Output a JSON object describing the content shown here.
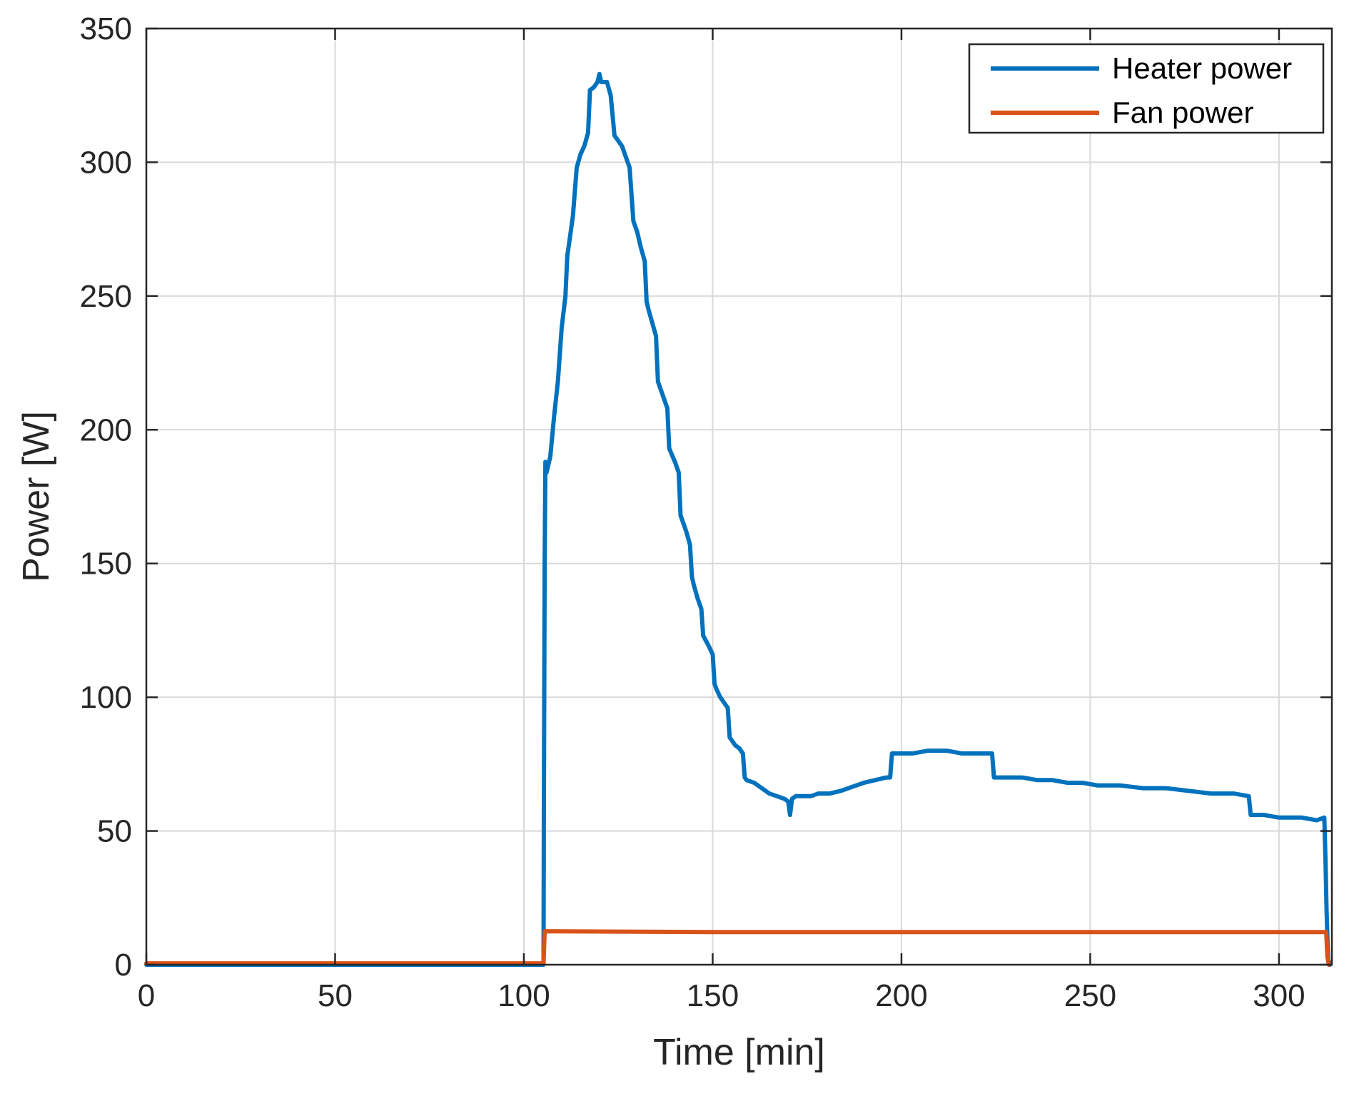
{
  "chart_data": {
    "type": "line",
    "xlabel": "Time [min]",
    "ylabel": "Power [W]",
    "xlim": [
      0,
      314
    ],
    "ylim": [
      0,
      350
    ],
    "xticks": [
      0,
      50,
      100,
      150,
      200,
      250,
      300
    ],
    "yticks": [
      0,
      50,
      100,
      150,
      200,
      250,
      300,
      350
    ],
    "grid": true,
    "legend_position": "top-right",
    "series": [
      {
        "name": "Heater power",
        "color": "#0072BD",
        "points": [
          [
            0,
            0
          ],
          [
            105.2,
            0
          ],
          [
            105.3,
            60
          ],
          [
            105.5,
            150
          ],
          [
            105.7,
            188
          ],
          [
            106,
            184
          ],
          [
            107,
            190
          ],
          [
            108,
            205
          ],
          [
            109,
            218
          ],
          [
            110,
            238
          ],
          [
            111,
            250
          ],
          [
            111.5,
            265
          ],
          [
            112,
            270
          ],
          [
            113,
            280
          ],
          [
            114,
            298
          ],
          [
            115,
            303
          ],
          [
            116,
            306
          ],
          [
            117,
            311
          ],
          [
            117.5,
            327
          ],
          [
            118.5,
            328
          ],
          [
            119.5,
            330
          ],
          [
            120,
            333
          ],
          [
            120.5,
            330
          ],
          [
            122,
            330
          ],
          [
            123,
            325
          ],
          [
            124,
            310
          ],
          [
            125,
            308
          ],
          [
            126,
            306
          ],
          [
            127,
            302
          ],
          [
            128,
            298
          ],
          [
            129,
            278
          ],
          [
            130,
            274
          ],
          [
            131,
            268
          ],
          [
            132,
            263
          ],
          [
            132.5,
            248
          ],
          [
            133,
            245
          ],
          [
            134,
            240
          ],
          [
            135,
            235
          ],
          [
            135.5,
            218
          ],
          [
            137,
            212
          ],
          [
            138,
            208
          ],
          [
            138.5,
            193
          ],
          [
            140,
            188
          ],
          [
            141,
            184
          ],
          [
            141.5,
            168
          ],
          [
            143,
            162
          ],
          [
            144,
            157
          ],
          [
            144.5,
            145
          ],
          [
            145,
            142
          ],
          [
            146,
            137
          ],
          [
            147,
            133
          ],
          [
            147.5,
            123
          ],
          [
            149,
            119
          ],
          [
            150,
            116
          ],
          [
            150.5,
            105
          ],
          [
            151,
            103
          ],
          [
            152,
            100
          ],
          [
            153,
            98
          ],
          [
            154,
            96
          ],
          [
            154.5,
            85
          ],
          [
            156,
            82
          ],
          [
            157,
            81
          ],
          [
            158,
            79
          ],
          [
            158.5,
            70
          ],
          [
            159,
            69
          ],
          [
            161,
            68
          ],
          [
            163,
            66
          ],
          [
            165,
            64
          ],
          [
            167,
            63
          ],
          [
            169,
            62
          ],
          [
            170,
            61
          ],
          [
            170.5,
            56
          ],
          [
            171,
            62
          ],
          [
            172,
            63
          ],
          [
            174,
            63
          ],
          [
            176,
            63
          ],
          [
            178,
            64
          ],
          [
            181,
            64
          ],
          [
            184,
            65
          ],
          [
            186,
            66
          ],
          [
            188,
            67
          ],
          [
            190,
            68
          ],
          [
            193,
            69
          ],
          [
            196,
            70
          ],
          [
            197,
            70
          ],
          [
            197.5,
            79
          ],
          [
            199,
            79
          ],
          [
            203,
            79
          ],
          [
            207,
            80
          ],
          [
            212,
            80
          ],
          [
            216,
            79
          ],
          [
            220,
            79
          ],
          [
            224,
            79
          ],
          [
            224.5,
            70
          ],
          [
            228,
            70
          ],
          [
            232,
            70
          ],
          [
            236,
            69
          ],
          [
            240,
            69
          ],
          [
            244,
            68
          ],
          [
            248,
            68
          ],
          [
            252,
            67
          ],
          [
            258,
            67
          ],
          [
            264,
            66
          ],
          [
            270,
            66
          ],
          [
            276,
            65
          ],
          [
            282,
            64
          ],
          [
            288,
            64
          ],
          [
            292,
            63
          ],
          [
            292.5,
            56
          ],
          [
            296,
            56
          ],
          [
            300,
            55
          ],
          [
            306,
            55
          ],
          [
            310,
            54
          ],
          [
            312,
            55
          ],
          [
            312.3,
            40
          ],
          [
            312.6,
            20
          ],
          [
            313,
            2
          ],
          [
            313.5,
            0
          ]
        ]
      },
      {
        "name": "Fan power",
        "color": "#D95319",
        "points": [
          [
            0,
            0.5
          ],
          [
            105.2,
            0.5
          ],
          [
            105.5,
            12.5
          ],
          [
            106,
            12.5
          ],
          [
            150,
            12.2
          ],
          [
            200,
            12.2
          ],
          [
            250,
            12.2
          ],
          [
            300,
            12.2
          ],
          [
            312.5,
            12.2
          ],
          [
            312.8,
            3
          ],
          [
            313.2,
            0
          ]
        ]
      }
    ]
  }
}
